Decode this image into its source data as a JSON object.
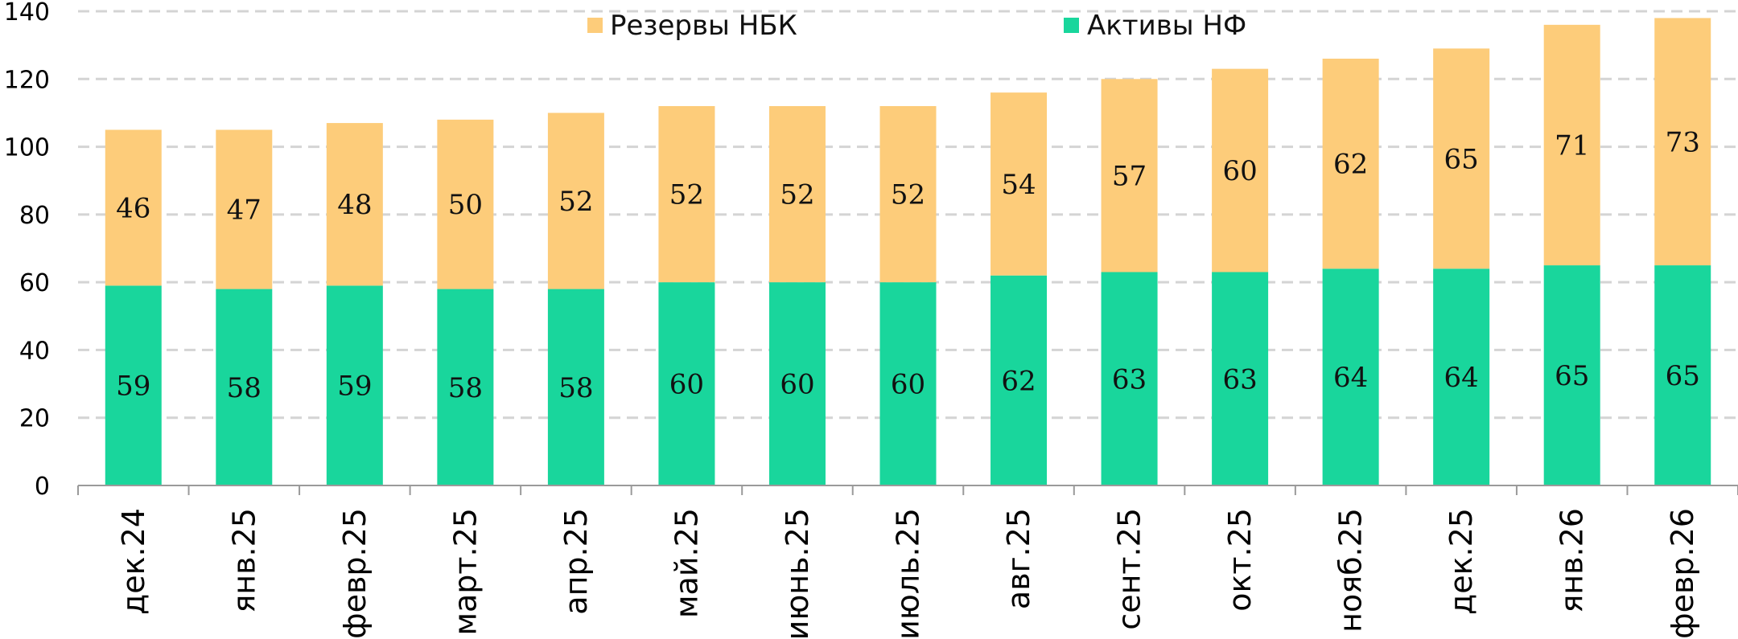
{
  "chart_data": {
    "type": "bar",
    "stacked": true,
    "categories": [
      "дек.24",
      "янв.25",
      "февр.25",
      "март.25",
      "апр.25",
      "май.25",
      "июнь.25",
      "июль.25",
      "авг.25",
      "сент.25",
      "окт.25",
      "нояб.25",
      "дек.25",
      "янв.26",
      "февр.26"
    ],
    "series": [
      {
        "name": "Активы НФ",
        "color": "#19d69c",
        "values": [
          59,
          58,
          59,
          58,
          58,
          60,
          60,
          60,
          62,
          63,
          63,
          64,
          64,
          65,
          65
        ]
      },
      {
        "name": "Резервы НБК",
        "color": "#fdcc7a",
        "values": [
          46,
          47,
          48,
          50,
          52,
          52,
          52,
          52,
          54,
          57,
          60,
          62,
          65,
          71,
          73
        ]
      }
    ],
    "ylim": [
      0,
      140
    ],
    "yticks": [
      "0",
      "20",
      "40",
      "60",
      "80",
      "100",
      "120",
      "140"
    ],
    "grid": true,
    "legend_position": "top",
    "legend_order": [
      "Резервы НБК",
      "Активы НФ"
    ]
  }
}
